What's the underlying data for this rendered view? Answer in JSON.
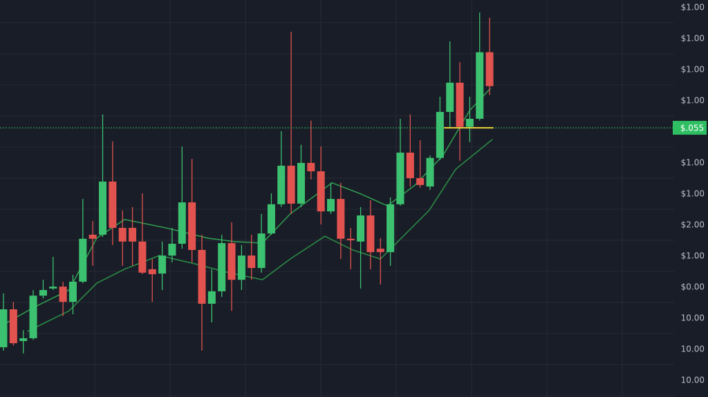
{
  "chart_data": {
    "type": "candlestick",
    "up_color": "#3cc170",
    "down_color": "#e2534f",
    "ylim": [
      -0.53,
      12.24
    ],
    "xlim": [
      -0.35,
      67.6
    ],
    "y_labels": [
      "$1.00",
      "$1.00",
      "$1.00",
      "$1.00",
      null,
      "$1.00",
      "$1.00",
      "$2.00",
      "$1.00",
      "$0.00",
      "10.00",
      "10.00",
      "10.00"
    ],
    "open": [
      1.07,
      2.29,
      1.27,
      1.36,
      2.73,
      2.96,
      3.02,
      2.53,
      3.18,
      4.69,
      4.69,
      6.4,
      4.91,
      4.91,
      4.47,
      3.58,
      3.44,
      4.02,
      4.4,
      5.73,
      4.2,
      2.47,
      2.87,
      4.42,
      3.24,
      4.02,
      3.62,
      4.73,
      5.67,
      6.91,
      5.69,
      7.0,
      6.73,
      5.44,
      5.84,
      4.56,
      4.47,
      5.31,
      4.24,
      4.13,
      5.67,
      7.33,
      6.51,
      6.24,
      7.16,
      8.64,
      9.58,
      8.16,
      8.42,
      10.56
    ],
    "high": [
      2.8,
      2.53,
      1.62,
      2.91,
      3.24,
      3.98,
      3.18,
      3.4,
      5.84,
      5.13,
      8.56,
      7.69,
      5.47,
      5.58,
      6.02,
      3.91,
      4.47,
      4.91,
      7.53,
      7.13,
      4.69,
      3.58,
      4.69,
      5.09,
      4.36,
      4.69,
      5.36,
      6.02,
      8.02,
      11.22,
      7.58,
      8.36,
      7.53,
      6.36,
      6.36,
      4.91,
      5.58,
      5.8,
      4.58,
      5.89,
      8.42,
      8.56,
      7.73,
      7.24,
      9.13,
      10.91,
      10.24,
      9.13,
      11.84,
      11.67
    ],
    "low": [
      0.96,
      1.13,
      0.87,
      1.31,
      2.64,
      2.91,
      2.07,
      2.13,
      3.13,
      3.69,
      4.62,
      4.36,
      3.69,
      3.69,
      3.42,
      2.53,
      2.91,
      3.8,
      4.24,
      3.8,
      0.96,
      1.87,
      2.69,
      2.24,
      2.91,
      3.24,
      3.47,
      4.69,
      5.58,
      5.36,
      5.58,
      6.47,
      5.02,
      5.36,
      3.91,
      3.58,
      2.96,
      3.58,
      3.09,
      3.69,
      5.62,
      6.24,
      6.2,
      6.13,
      7.09,
      8.13,
      7.07,
      7.67,
      8.36,
      9.18
    ],
    "close": [
      2.29,
      1.2,
      1.36,
      2.73,
      2.91,
      3.02,
      2.53,
      3.18,
      4.56,
      4.56,
      6.4,
      4.91,
      4.47,
      4.47,
      3.47,
      3.42,
      4.02,
      4.4,
      5.73,
      4.2,
      2.47,
      2.87,
      4.42,
      3.24,
      4.02,
      3.62,
      4.73,
      5.67,
      6.91,
      5.69,
      7.0,
      6.73,
      5.44,
      5.84,
      4.56,
      4.51,
      5.31,
      4.13,
      4.13,
      5.67,
      7.33,
      6.51,
      6.29,
      7.16,
      8.64,
      9.58,
      8.16,
      8.42,
      10.56,
      9.47
    ],
    "series": [
      {
        "color": "#2f9a4f",
        "x": [
          0,
          3.1,
          6.6,
          9.4,
          12.2,
          16.4,
          20.6,
          23.3,
          26.1,
          28.9,
          31.7,
          33.1,
          35.9,
          38.7,
          41.5,
          44.3,
          47.0,
          49.1
        ],
        "values": [
          1.8,
          2.36,
          2.91,
          4.58,
          5.18,
          4.91,
          4.58,
          4.47,
          4.42,
          5.36,
          6.02,
          6.36,
          6.02,
          5.62,
          6.29,
          7.24,
          8.69,
          9.4
        ]
      },
      {
        "color": "#2a8a46",
        "x": [
          2.4,
          6.6,
          9.4,
          12.2,
          15.7,
          19.2,
          22.7,
          26.1,
          28.9,
          32.4,
          35.2,
          38.0,
          40.1,
          42.9,
          45.6,
          49.3
        ],
        "values": [
          1.58,
          2.24,
          3.13,
          3.58,
          4.02,
          3.76,
          3.47,
          3.24,
          3.91,
          4.64,
          4.2,
          3.91,
          4.58,
          5.47,
          6.8,
          7.76
        ]
      }
    ],
    "current_price": 8.13,
    "current_price_label": "$.055",
    "current_price_color": "#2fbf63",
    "marker_color": "#e8d33a"
  }
}
